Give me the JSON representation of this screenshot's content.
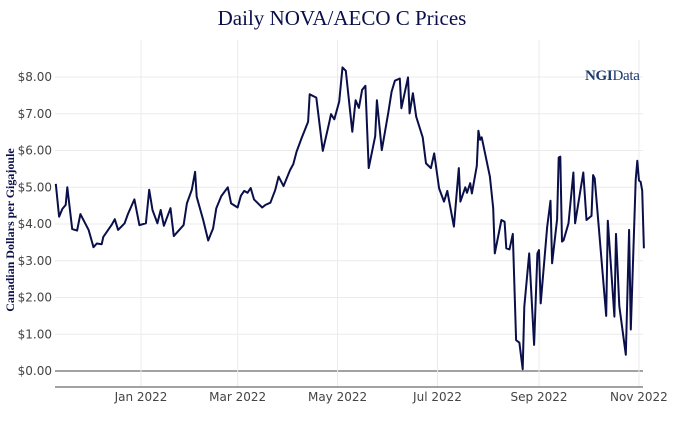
{
  "chart_data": {
    "type": "line",
    "title": "Daily NOVA/AECO C Prices",
    "xlabel": "",
    "ylabel": "Canadian Dollars per Gigajoule",
    "watermark": "NGIData",
    "line_color": "#0a0f4a",
    "grid": true,
    "xlim": [
      "2021-11-10",
      "2022-11-04"
    ],
    "ylim": [
      -0.4,
      8.8
    ],
    "x_ticks": [
      {
        "date": "2022-01-01",
        "label": "Jan 2022"
      },
      {
        "date": "2022-03-01",
        "label": "Mar 2022"
      },
      {
        "date": "2022-05-01",
        "label": "May 2022"
      },
      {
        "date": "2022-07-01",
        "label": "Jul 2022"
      },
      {
        "date": "2022-09-01",
        "label": "Sep 2022"
      },
      {
        "date": "2022-11-01",
        "label": "Nov 2022"
      }
    ],
    "y_ticks": [
      {
        "value": 0,
        "label": "$0.00"
      },
      {
        "value": 1,
        "label": "$1.00"
      },
      {
        "value": 2,
        "label": "$2.00"
      },
      {
        "value": 3,
        "label": "$3.00"
      },
      {
        "value": 4,
        "label": "$4.00"
      },
      {
        "value": 5,
        "label": "$5.00"
      },
      {
        "value": 6,
        "label": "$6.00"
      },
      {
        "value": 7,
        "label": "$7.00"
      },
      {
        "value": 8,
        "label": "$8.00"
      }
    ],
    "series": [
      {
        "x": [
          "2021-11-10",
          "2021-11-12",
          "2021-11-14",
          "2021-11-16",
          "2021-11-17",
          "2021-11-20",
          "2021-11-23",
          "2021-11-25",
          "2021-11-30",
          "2021-12-03",
          "2021-12-05",
          "2021-12-08",
          "2021-12-09",
          "2021-12-14",
          "2021-12-16",
          "2021-12-18",
          "2021-12-22",
          "2021-12-24",
          "2021-12-28",
          "2021-12-31",
          "2022-01-04",
          "2022-01-06",
          "2022-01-08",
          "2022-01-11",
          "2022-01-13",
          "2022-01-15",
          "2022-01-19",
          "2022-01-21",
          "2022-01-27",
          "2022-01-29",
          "2022-02-01",
          "2022-02-03",
          "2022-02-04",
          "2022-02-08",
          "2022-02-11",
          "2022-02-14",
          "2022-02-16",
          "2022-02-19",
          "2022-02-23",
          "2022-02-25",
          "2022-03-01",
          "2022-03-03",
          "2022-03-05",
          "2022-03-07",
          "2022-03-09",
          "2022-03-11",
          "2022-03-16",
          "2022-03-18",
          "2022-03-21",
          "2022-03-24",
          "2022-03-26",
          "2022-03-29",
          "2022-04-02",
          "2022-04-04",
          "2022-04-06",
          "2022-04-09",
          "2022-04-13",
          "2022-04-14",
          "2022-04-18",
          "2022-04-22",
          "2022-04-26",
          "2022-04-27",
          "2022-04-29",
          "2022-05-02",
          "2022-05-04",
          "2022-05-06",
          "2022-05-10",
          "2022-05-12",
          "2022-05-14",
          "2022-05-16",
          "2022-05-18",
          "2022-05-20",
          "2022-05-24",
          "2022-05-25",
          "2022-05-28",
          "2022-06-01",
          "2022-06-03",
          "2022-06-05",
          "2022-06-08",
          "2022-06-09",
          "2022-06-13",
          "2022-06-14",
          "2022-06-16",
          "2022-06-18",
          "2022-06-22",
          "2022-06-24",
          "2022-06-27",
          "2022-06-29",
          "2022-07-02",
          "2022-07-05",
          "2022-07-07",
          "2022-07-11",
          "2022-07-14",
          "2022-07-15",
          "2022-07-18",
          "2022-07-19",
          "2022-07-21",
          "2022-07-22",
          "2022-07-25",
          "2022-07-26",
          "2022-07-27",
          "2022-07-28",
          "2022-08-02",
          "2022-08-04",
          "2022-08-05",
          "2022-08-09",
          "2022-08-11",
          "2022-08-12",
          "2022-08-14",
          "2022-08-16",
          "2022-08-18",
          "2022-08-20",
          "2022-08-22",
          "2022-08-23",
          "2022-08-26",
          "2022-08-29",
          "2022-08-31",
          "2022-09-01",
          "2022-09-02",
          "2022-09-06",
          "2022-09-08",
          "2022-09-09",
          "2022-09-12",
          "2022-09-13",
          "2022-09-14",
          "2022-09-15",
          "2022-09-16",
          "2022-09-19",
          "2022-09-22",
          "2022-09-23",
          "2022-09-28",
          "2022-09-30",
          "2022-10-03",
          "2022-10-04",
          "2022-10-05",
          "2022-10-12",
          "2022-10-13",
          "2022-10-17",
          "2022-10-18",
          "2022-10-20",
          "2022-10-24",
          "2022-10-26",
          "2022-10-27",
          "2022-10-30",
          "2022-10-31",
          "2022-11-01",
          "2022-11-02",
          "2022-11-03",
          "2022-11-04"
        ],
        "y": [
          5.09,
          4.2,
          4.41,
          4.52,
          5.0,
          3.86,
          3.82,
          4.27,
          3.84,
          3.37,
          3.47,
          3.45,
          3.65,
          3.97,
          4.13,
          3.84,
          4.02,
          4.27,
          4.67,
          3.97,
          4.02,
          4.93,
          4.38,
          4.02,
          4.38,
          3.95,
          4.43,
          3.67,
          3.97,
          4.56,
          4.93,
          5.42,
          4.74,
          4.11,
          3.55,
          3.88,
          4.43,
          4.76,
          5.0,
          4.56,
          4.45,
          4.77,
          4.9,
          4.85,
          4.98,
          4.67,
          4.45,
          4.52,
          4.58,
          4.93,
          5.29,
          5.03,
          5.47,
          5.63,
          5.97,
          6.33,
          6.78,
          7.53,
          7.44,
          5.99,
          6.78,
          6.99,
          6.85,
          7.33,
          8.26,
          8.17,
          6.51,
          7.37,
          7.16,
          7.65,
          7.76,
          5.52,
          6.39,
          7.37,
          6.01,
          7.03,
          7.6,
          7.9,
          7.96,
          7.15,
          7.99,
          7.01,
          7.56,
          6.92,
          6.36,
          5.65,
          5.52,
          5.92,
          4.97,
          4.61,
          4.9,
          3.93,
          5.52,
          4.61,
          5.0,
          4.85,
          5.11,
          4.83,
          5.58,
          6.54,
          6.29,
          6.36,
          5.29,
          4.43,
          3.2,
          4.11,
          4.06,
          3.34,
          3.31,
          3.73,
          0.84,
          0.77,
          0.05,
          1.75,
          3.2,
          0.71,
          3.2,
          3.29,
          1.84,
          3.93,
          4.63,
          2.93,
          4.13,
          5.81,
          5.83,
          3.52,
          3.56,
          4.02,
          5.4,
          4.02,
          5.4,
          4.11,
          4.22,
          5.33,
          5.24,
          1.5,
          4.09,
          1.48,
          3.73,
          1.77,
          0.44,
          3.84,
          1.13,
          5.2,
          5.72,
          5.18,
          5.15,
          4.91,
          3.34
        ]
      }
    ]
  }
}
